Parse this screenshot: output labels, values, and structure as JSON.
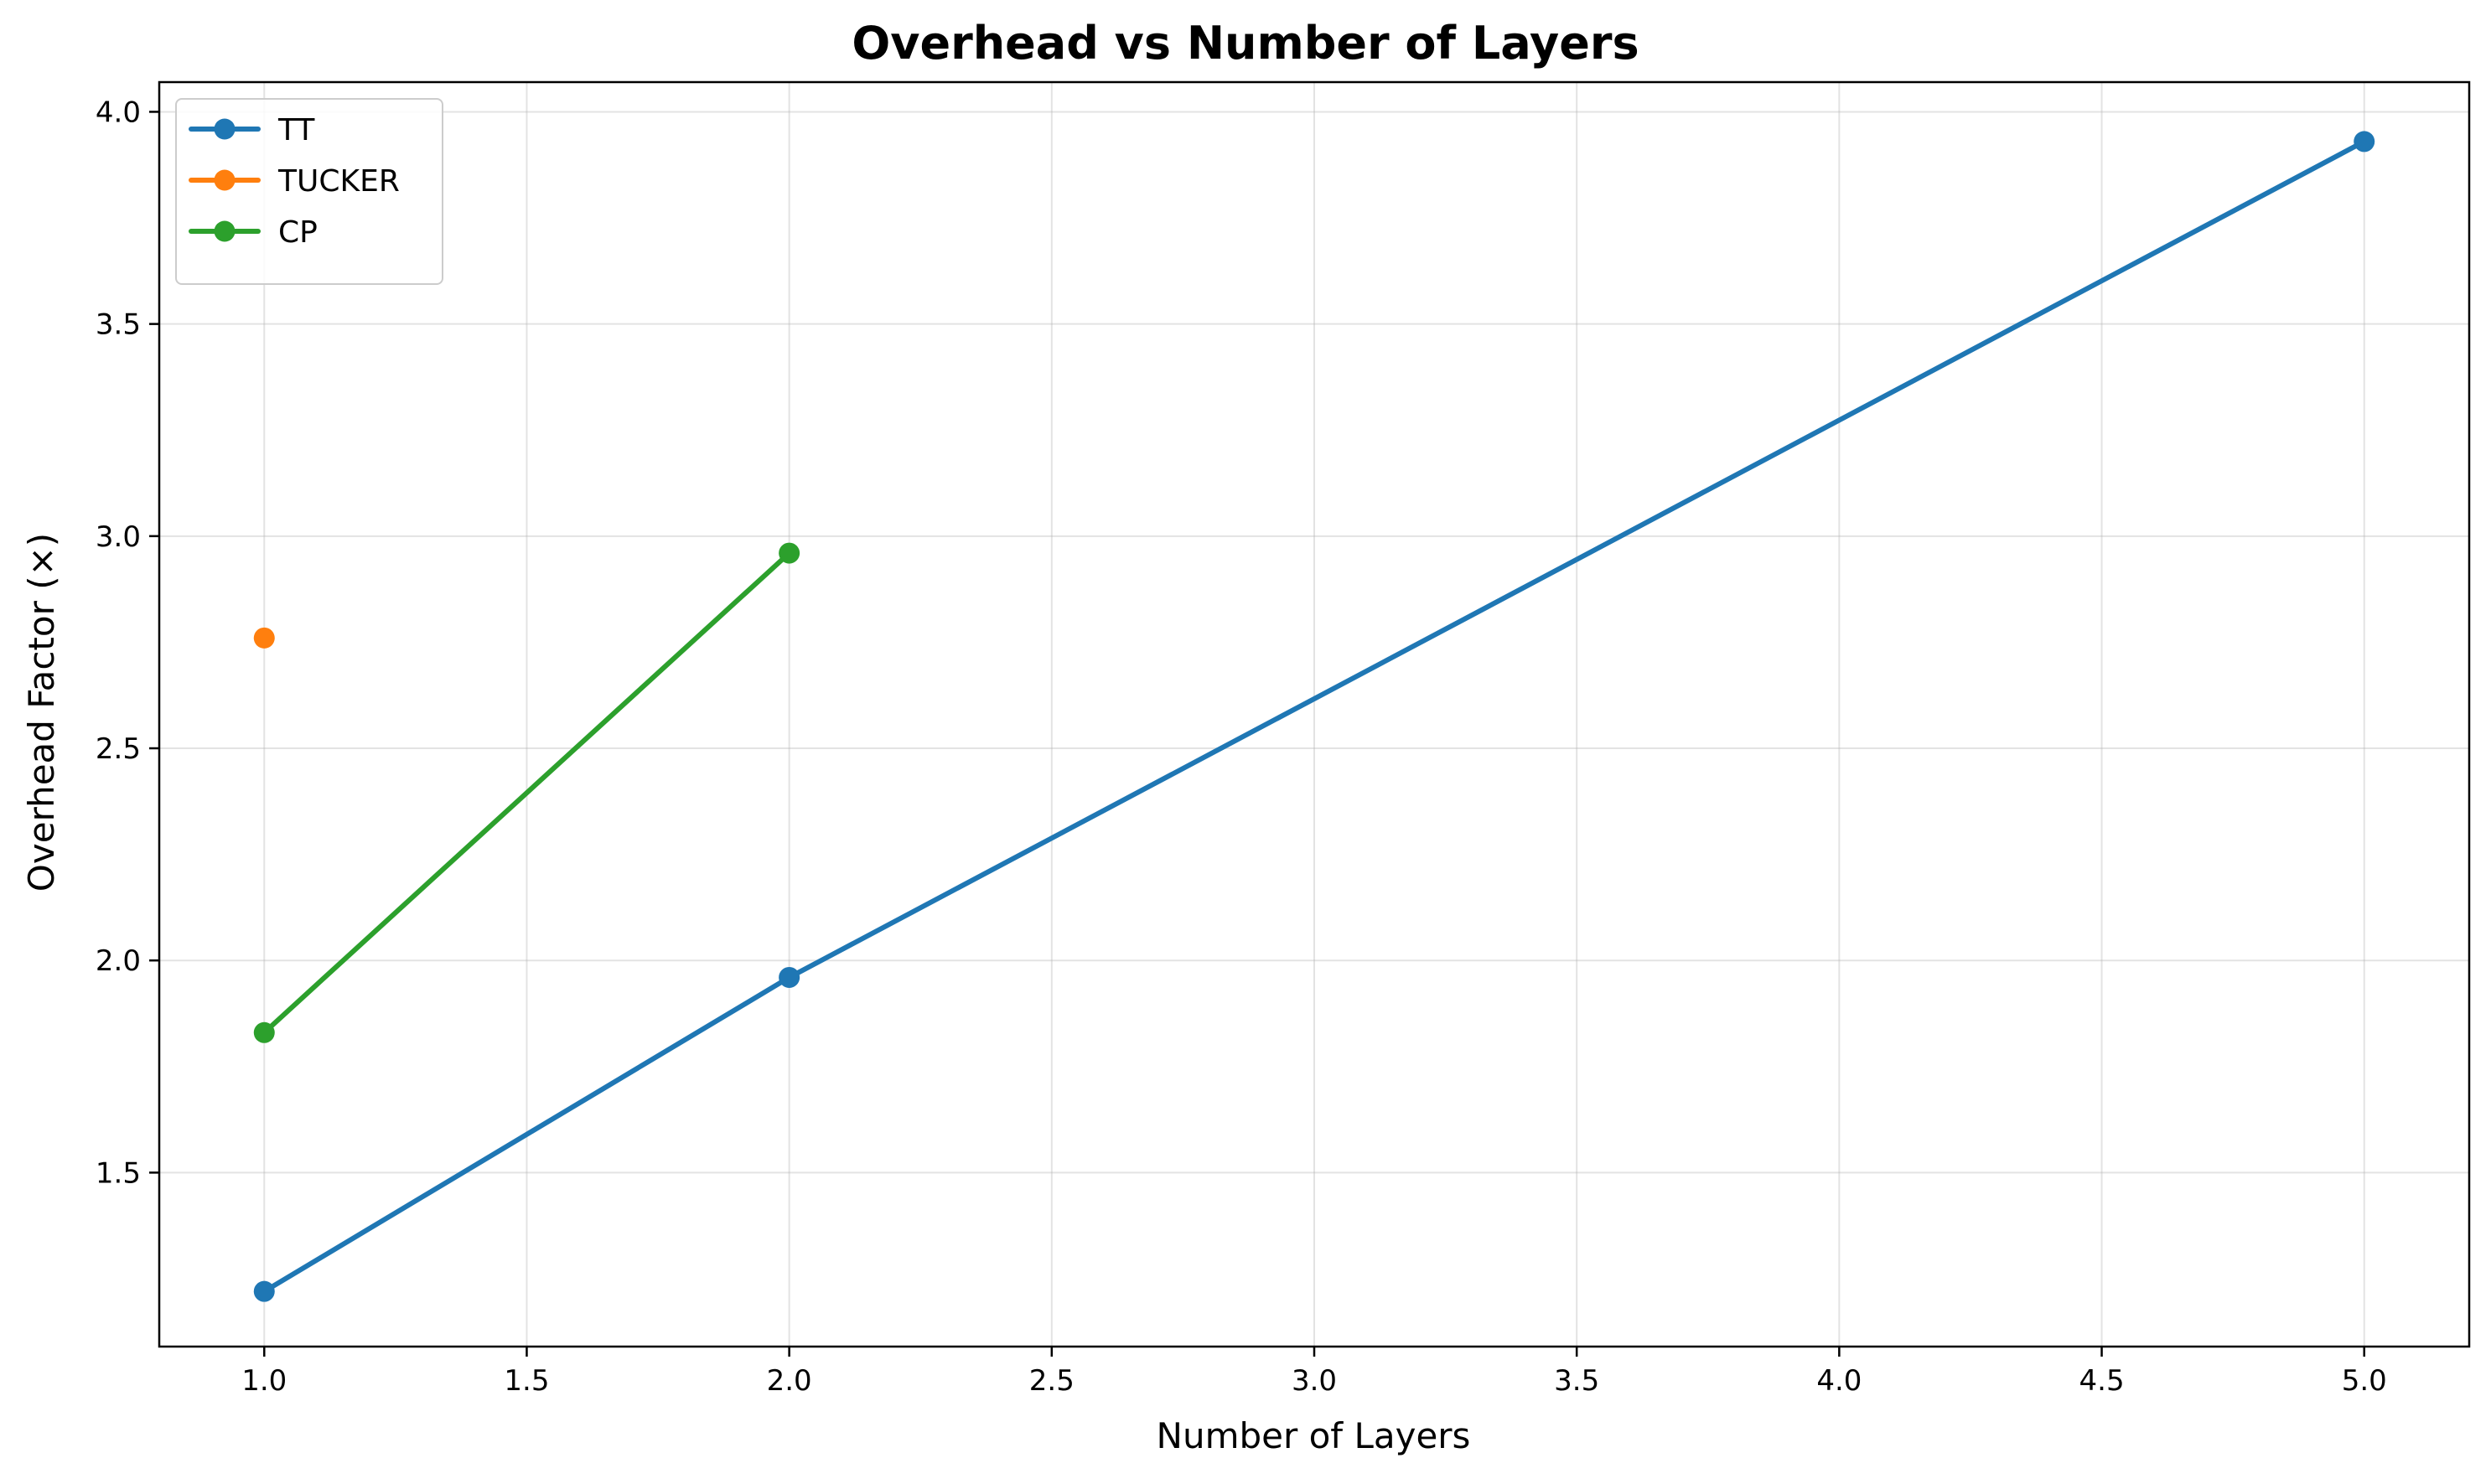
{
  "chart_data": {
    "type": "line",
    "title": "Overhead vs Number of Layers",
    "xlabel": "Number of Layers",
    "ylabel": "Overhead Factor (×)",
    "xlim": [
      0.8,
      5.2
    ],
    "ylim": [
      1.09,
      4.07
    ],
    "xticks": [
      1.0,
      1.5,
      2.0,
      2.5,
      3.0,
      3.5,
      4.0,
      4.5,
      5.0
    ],
    "xtick_labels": [
      "1.0",
      "1.5",
      "2.0",
      "2.5",
      "3.0",
      "3.5",
      "4.0",
      "4.5",
      "5.0"
    ],
    "yticks": [
      1.5,
      2.0,
      2.5,
      3.0,
      3.5,
      4.0
    ],
    "ytick_labels": [
      "1.5",
      "2.0",
      "2.5",
      "3.0",
      "3.5",
      "4.0"
    ],
    "grid": true,
    "legend_position": "top-left",
    "series": [
      {
        "name": "TT",
        "color": "#1f77b4",
        "x": [
          1,
          2,
          5
        ],
        "y": [
          1.22,
          1.96,
          3.93
        ]
      },
      {
        "name": "TUCKER",
        "color": "#ff7f0e",
        "x": [
          1
        ],
        "y": [
          2.76
        ]
      },
      {
        "name": "CP",
        "color": "#2ca02c",
        "x": [
          1,
          2
        ],
        "y": [
          1.83,
          2.96
        ]
      }
    ]
  }
}
